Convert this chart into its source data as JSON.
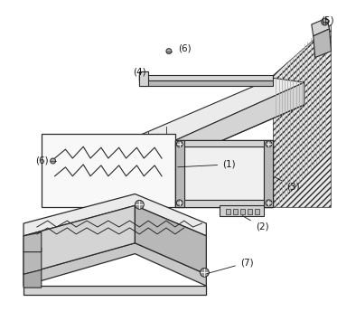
{
  "bg_color": "#ffffff",
  "lc": "#2a2a2a",
  "fc_light": "#ebebeb",
  "fc_mid": "#d4d4d4",
  "fc_dark": "#b8b8b8",
  "fc_hatch": "#e4e4e4"
}
